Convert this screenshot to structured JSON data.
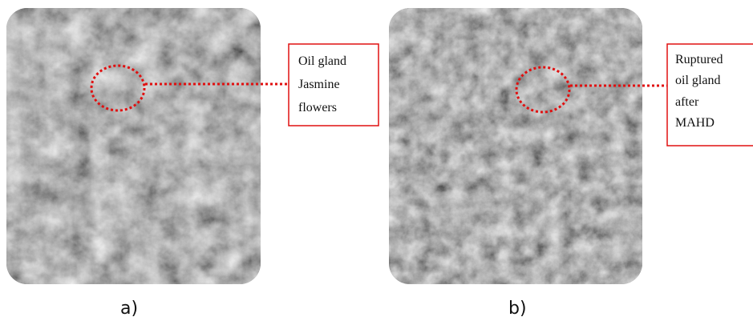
{
  "panels": [
    {
      "label": "a)",
      "annotation": [
        "Oil gland",
        "Jasmine",
        "flowers"
      ]
    },
    {
      "label": "b)",
      "annotation": [
        "Ruptured",
        "oil gland",
        "after",
        "MAHD"
      ]
    }
  ]
}
